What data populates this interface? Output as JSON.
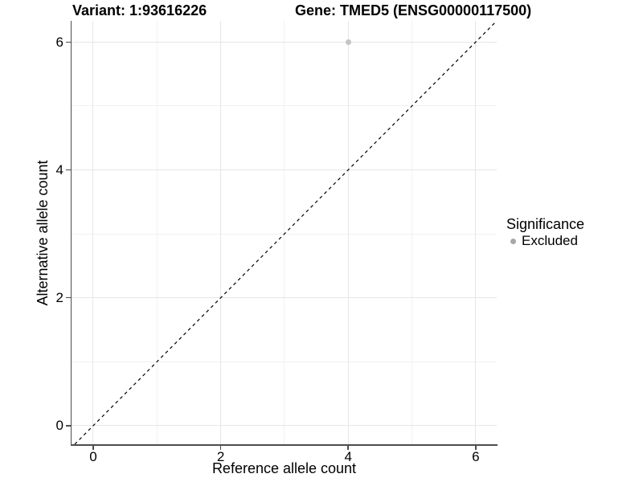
{
  "titles": {
    "variant": "Variant: 1:93616226",
    "gene": "Gene: TMED5 (ENSG00000117500)"
  },
  "chart_data": {
    "type": "scatter",
    "title_left": "Variant: 1:93616226",
    "title_right": "Gene: TMED5 (ENSG00000117500)",
    "xlabel": "Reference allele count",
    "ylabel": "Alternative allele count",
    "xlim": [
      -0.34,
      6.33
    ],
    "ylim": [
      -0.29,
      6.33
    ],
    "x_ticks": [
      0,
      2,
      4,
      6
    ],
    "y_ticks": [
      0,
      2,
      4,
      6
    ],
    "minor_x_gridlines": [
      1,
      3,
      5
    ],
    "minor_y_gridlines": [
      1,
      3,
      5
    ],
    "grid": true,
    "series": [
      {
        "name": "Excluded",
        "points": [
          {
            "x": 4,
            "y": 6
          }
        ],
        "color": "#c4c4c4",
        "marker": "circle"
      }
    ],
    "reference_line": {
      "slope": 1,
      "intercept": 0,
      "style": "dashed",
      "color": "#000000"
    },
    "legend": {
      "title": "Significance",
      "position": "right",
      "items": [
        {
          "label": "Excluded",
          "color": "#a8a8a8",
          "marker": "circle"
        }
      ]
    },
    "colors": {
      "major_gridline": "#e6e6e6",
      "minor_gridline": "#f1f1f1",
      "axis": "#4d4d4d",
      "text": "#000000",
      "background": "#ffffff"
    }
  }
}
